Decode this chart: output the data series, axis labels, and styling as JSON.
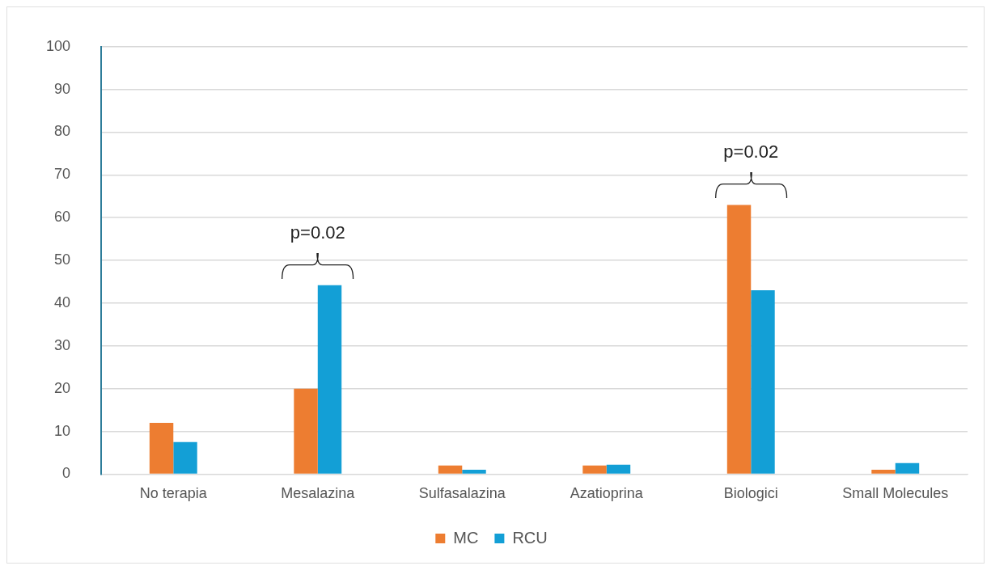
{
  "chart_data": {
    "type": "bar",
    "categories": [
      "No terapia",
      "Mesalazina",
      "Sulfasalazina",
      "Azatioprina",
      "Biologici",
      "Small Molecules"
    ],
    "series": [
      {
        "name": "MC",
        "color": "#ed7d31",
        "values": [
          12,
          20,
          2,
          2,
          63,
          1
        ]
      },
      {
        "name": "RCU",
        "color": "#139fd6",
        "values": [
          7.5,
          44.2,
          1,
          2.2,
          43,
          2.6
        ]
      }
    ],
    "ylim": [
      0,
      100
    ],
    "yticks": [
      0,
      10,
      20,
      30,
      40,
      50,
      60,
      70,
      80,
      90,
      100
    ],
    "grid": "y",
    "legend": "bottom",
    "annotations": [
      "p=0.02",
      "p=0.02"
    ]
  }
}
